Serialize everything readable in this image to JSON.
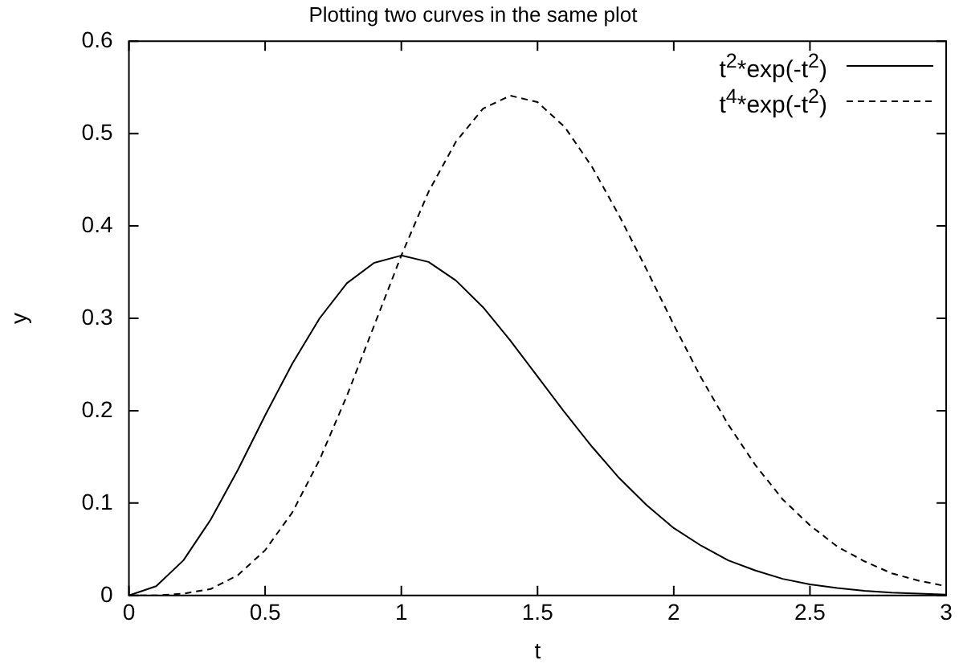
{
  "chart_data": {
    "type": "line",
    "title": "Plotting two curves in the same plot",
    "xlabel": "t",
    "ylabel": "y",
    "x": [
      0,
      0.1,
      0.2,
      0.3,
      0.4,
      0.5,
      0.6,
      0.7,
      0.8,
      0.9,
      1,
      1.1,
      1.2,
      1.3,
      1.4,
      1.5,
      1.6,
      1.7,
      1.8,
      1.9,
      2,
      2.1,
      2.2,
      2.3,
      2.4,
      2.5,
      2.6,
      2.7,
      2.8,
      2.9,
      3
    ],
    "series": [
      {
        "name": "t$^{2}$*exp(-t$^{2}$)",
        "color": "#000000",
        "line_style": "solid",
        "values": [
          0,
          0.01,
          0.038,
          0.082,
          0.136,
          0.195,
          0.251,
          0.3,
          0.338,
          0.36,
          0.368,
          0.361,
          0.341,
          0.312,
          0.276,
          0.237,
          0.198,
          0.161,
          0.127,
          0.098,
          0.073,
          0.054,
          0.038,
          0.027,
          0.018,
          0.012,
          0.008,
          0.005,
          0.003,
          0.002,
          0.001
        ]
      },
      {
        "name": "t$^{4}$*exp(-t$^{2}$)",
        "color": "#000000",
        "line_style": "dashed",
        "values": [
          0,
          0,
          0.002,
          0.007,
          0.022,
          0.049,
          0.09,
          0.147,
          0.216,
          0.292,
          0.368,
          0.437,
          0.491,
          0.527,
          0.541,
          0.534,
          0.507,
          0.464,
          0.411,
          0.353,
          0.293,
          0.236,
          0.185,
          0.141,
          0.104,
          0.076,
          0.053,
          0.037,
          0.024,
          0.016,
          0.01
        ]
      }
    ],
    "xlim": [
      0,
      3
    ],
    "xticks": [
      0,
      0.5,
      1,
      1.5,
      2,
      2.5,
      3
    ],
    "ylim": [
      0,
      0.6
    ],
    "yticks": [
      0,
      0.1,
      0.2,
      0.3,
      0.4,
      0.5,
      0.6
    ],
    "grid": false,
    "legend": "top right",
    "marker": "none"
  }
}
